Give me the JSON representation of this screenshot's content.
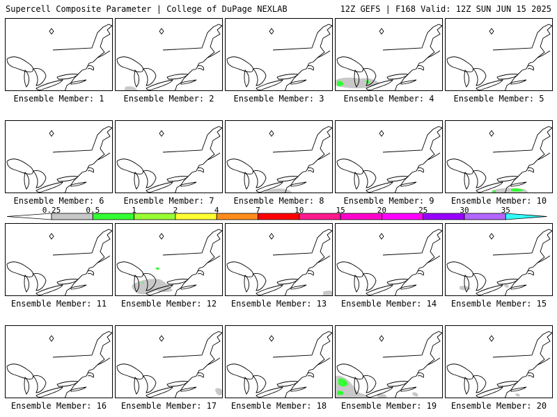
{
  "header": {
    "left_title": "Supercell Composite Parameter | College of DuPage NEXLAB",
    "right_title": "12Z GEFS | F168 Valid: 12Z SUN JUN 15 2025"
  },
  "colorbar": {
    "ticks": [
      "0.25",
      "0.5",
      "1",
      "2",
      "4",
      "7",
      "10",
      "15",
      "20",
      "25",
      "30",
      "35"
    ],
    "colors": [
      "#c8c8c8",
      "#33ff33",
      "#99ff33",
      "#ffff33",
      "#ff8c1a",
      "#ff0000",
      "#ff1a8c",
      "#ff00cc",
      "#ff00ff",
      "#9900ff",
      "#b366ff",
      "#33ffff"
    ]
  },
  "panels": [
    {
      "label": "Ensemble Member: 1"
    },
    {
      "label": "Ensemble Member: 2"
    },
    {
      "label": "Ensemble Member: 3"
    },
    {
      "label": "Ensemble Member: 4"
    },
    {
      "label": "Ensemble Member: 5"
    },
    {
      "label": "Ensemble Member: 6"
    },
    {
      "label": "Ensemble Member: 7"
    },
    {
      "label": "Ensemble Member: 8"
    },
    {
      "label": "Ensemble Member: 9"
    },
    {
      "label": "Ensemble Member: 10"
    },
    {
      "label": "Ensemble Member: 11"
    },
    {
      "label": "Ensemble Member: 12"
    },
    {
      "label": "Ensemble Member: 13"
    },
    {
      "label": "Ensemble Member: 14"
    },
    {
      "label": "Ensemble Member: 15"
    },
    {
      "label": "Ensemble Member: 16"
    },
    {
      "label": "Ensemble Member: 17"
    },
    {
      "label": "Ensemble Member: 18"
    },
    {
      "label": "Ensemble Member: 19"
    },
    {
      "label": "Ensemble Member: 20"
    }
  ]
}
